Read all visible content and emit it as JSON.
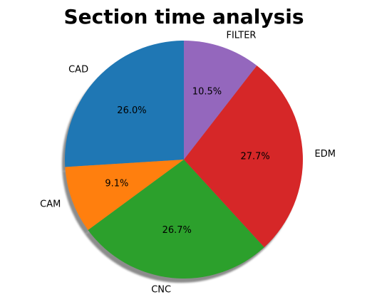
{
  "chart_data": {
    "type": "pie",
    "title": "Section time analysis",
    "categories": [
      "CAD",
      "CAM",
      "CNC",
      "EDM",
      "FILTER"
    ],
    "values": [
      26.0,
      9.1,
      26.7,
      27.7,
      10.5
    ],
    "percent_labels": [
      "26.0%",
      "9.1%",
      "26.7%",
      "27.7%",
      "10.5%"
    ],
    "colors": [
      "#1f77b4",
      "#ff7f0e",
      "#2ca02c",
      "#d62728",
      "#9467bd"
    ],
    "start_angle_deg": 90,
    "direction": "counterclockwise",
    "shadow": true,
    "legend": "none"
  }
}
